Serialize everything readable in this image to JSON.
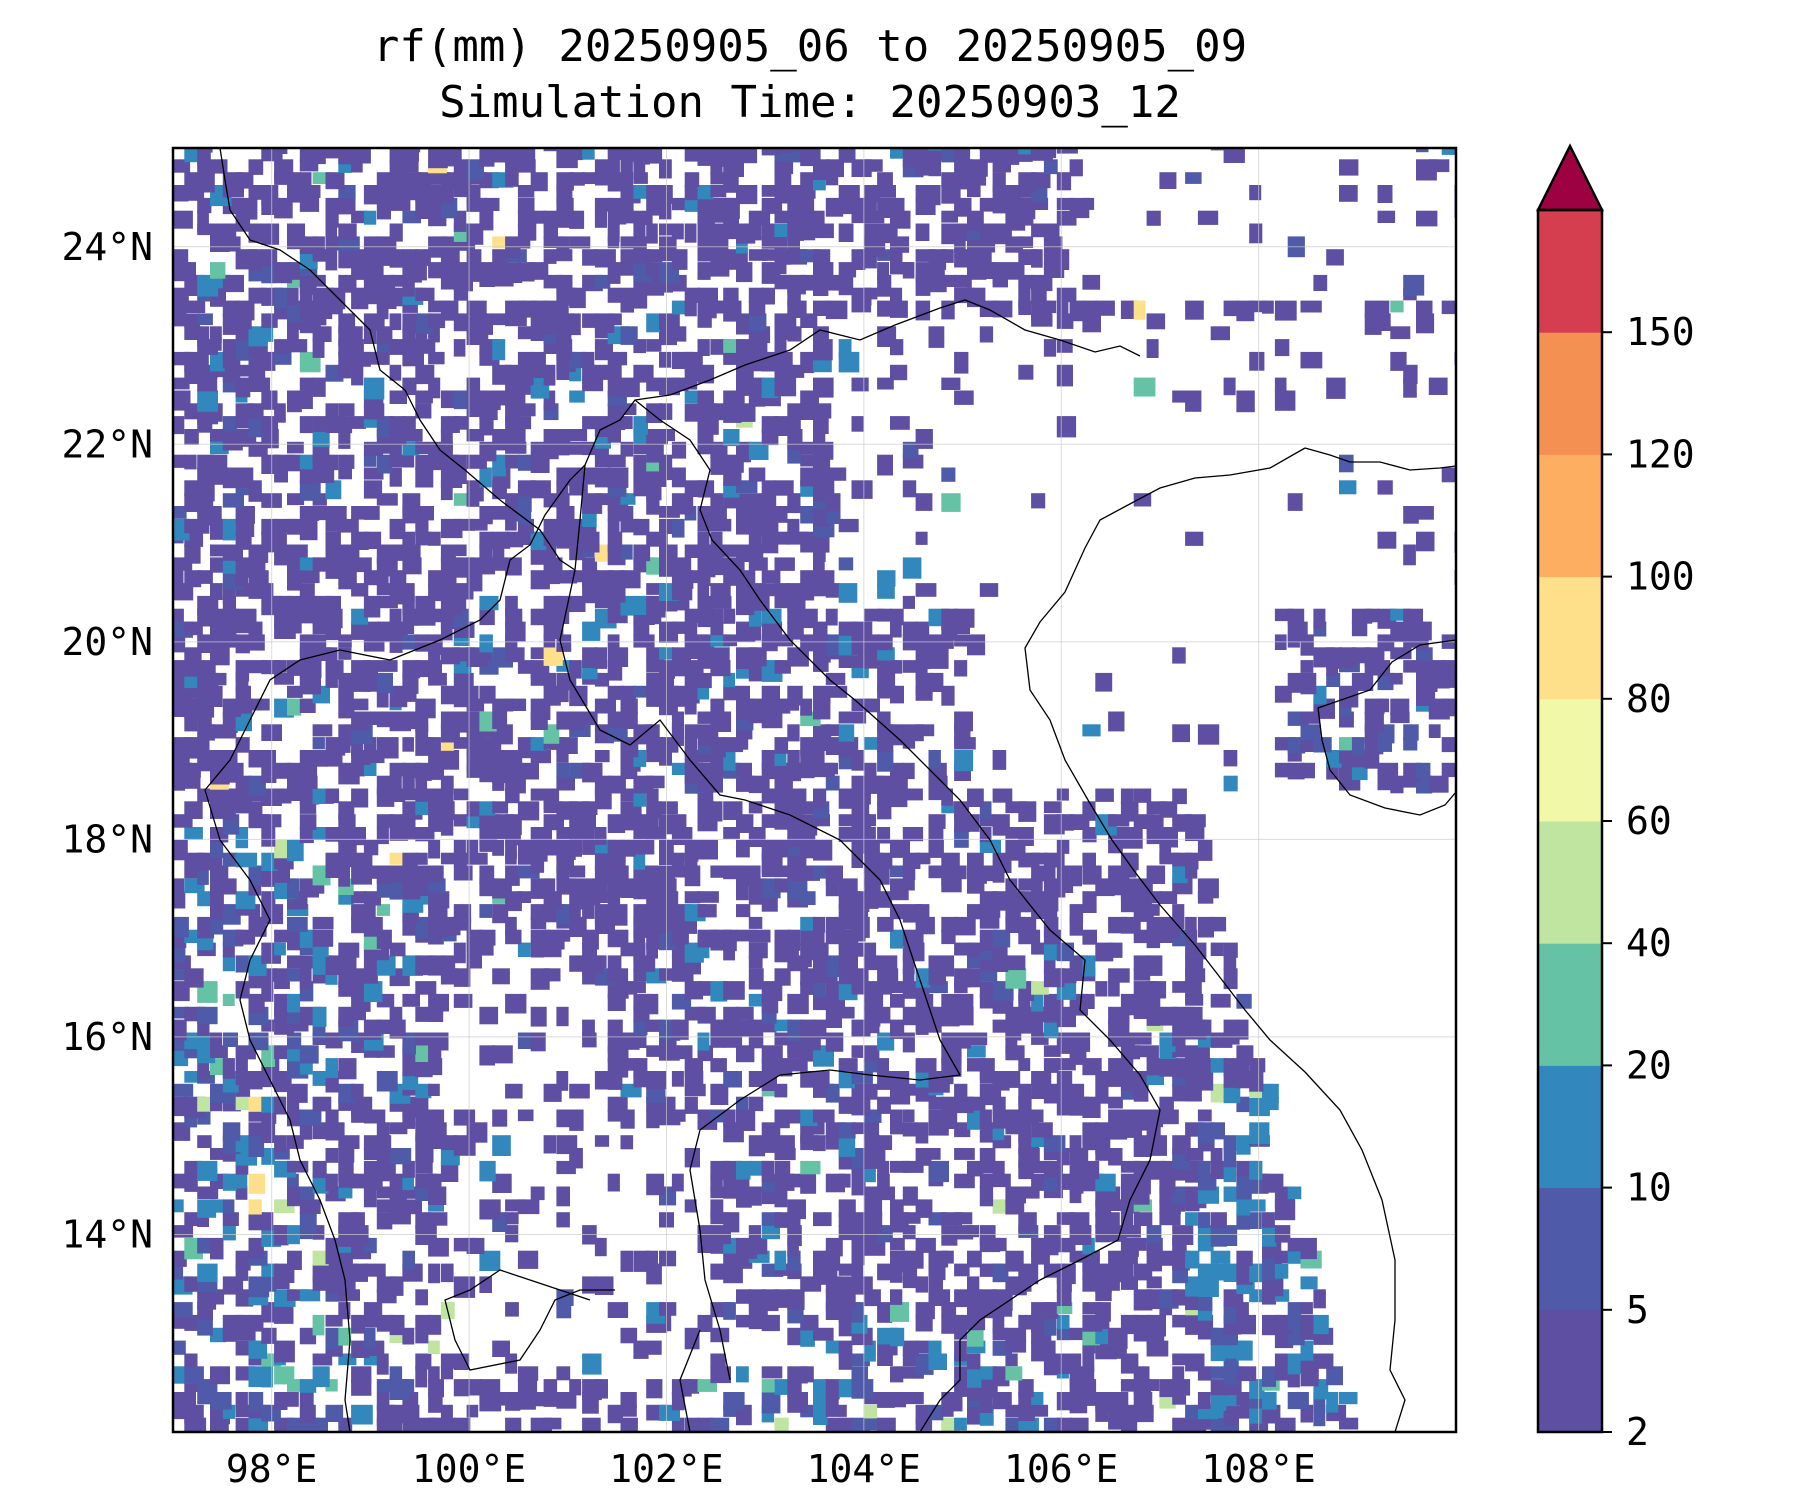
{
  "title": {
    "line1": "rf(mm) 20250905_06 to 20250905_09",
    "line2": "Simulation Time: 20250903_12"
  },
  "map": {
    "lon_range": [
      97,
      110
    ],
    "lat_range": [
      12,
      25
    ],
    "lon_ticks": [
      {
        "value": 98,
        "label": "98°E"
      },
      {
        "value": 100,
        "label": "100°E"
      },
      {
        "value": 102,
        "label": "102°E"
      },
      {
        "value": 104,
        "label": "104°E"
      },
      {
        "value": 106,
        "label": "106°E"
      },
      {
        "value": 108,
        "label": "108°E"
      }
    ],
    "lat_ticks": [
      {
        "value": 14,
        "label": "14°N"
      },
      {
        "value": 16,
        "label": "16°N"
      },
      {
        "value": 18,
        "label": "18°N"
      },
      {
        "value": 20,
        "label": "20°N"
      },
      {
        "value": 22,
        "label": "22°N"
      },
      {
        "value": 24,
        "label": "24°N"
      }
    ],
    "gridlines": true
  },
  "colorbar": {
    "levels": [
      "2",
      "5",
      "10",
      "20",
      "40",
      "60",
      "80",
      "100",
      "120",
      "150"
    ],
    "colors": [
      "#5e4fa2",
      "#4f5aa8",
      "#3288bd",
      "#66c2a5",
      "#bfe5a0",
      "#f1f9a9",
      "#fee08b",
      "#fdae61",
      "#f59053",
      "#d53e4f"
    ],
    "extend_color": "#9e0142",
    "extend": "max"
  }
}
